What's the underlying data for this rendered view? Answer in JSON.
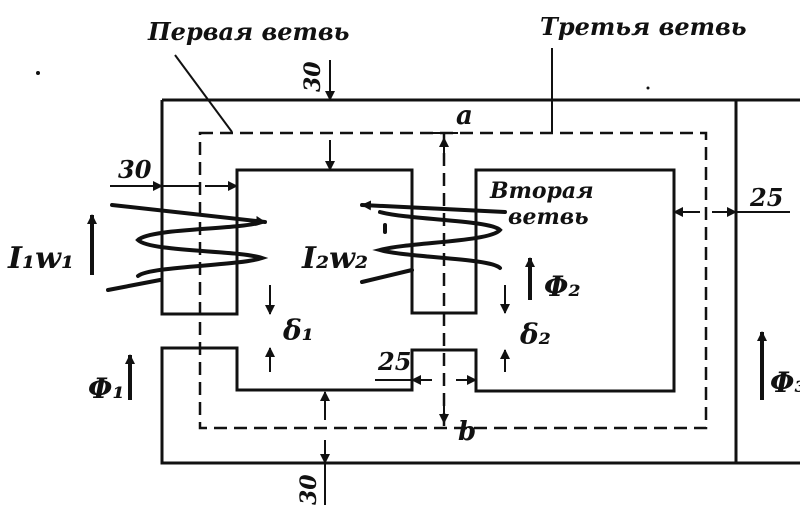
{
  "labels": {
    "first_branch": "Первая ветвь",
    "third_branch": "Третья ветвь",
    "second_branch_line1": "Вторая",
    "second_branch_line2": "ветвь",
    "point_a": "a",
    "point_b": "b",
    "coil1": "I₁w₁",
    "coil2": "I₂w₂",
    "flux1": "Φ₁",
    "flux2": "Φ₂",
    "flux3": "Φ₃",
    "gap1": "δ₁",
    "gap2": "δ₂"
  },
  "dimensions": {
    "top": "30",
    "left": "30",
    "right": "25",
    "middle": "25",
    "bottom": "30"
  }
}
